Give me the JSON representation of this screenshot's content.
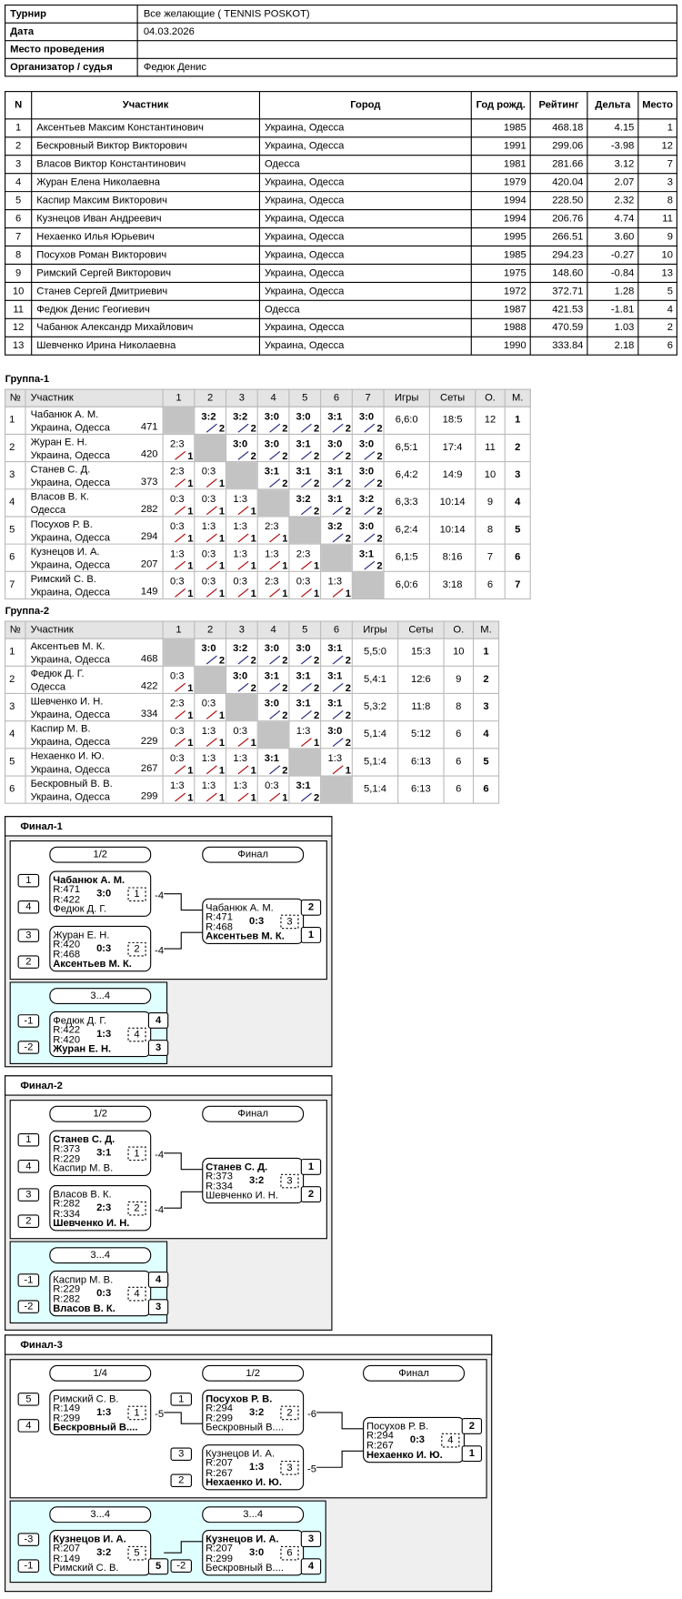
{
  "info": {
    "rows": [
      {
        "label": "Турнир",
        "value": "Все желающие ( TENNIS POSKOT)"
      },
      {
        "label": "Дата",
        "value": "04.03.2026"
      },
      {
        "label": "Место проведения"
      },
      {
        "label": "Организатор / судья",
        "value": "Федюк Денис"
      }
    ]
  },
  "participants": {
    "headers": [
      "N",
      "Участник",
      "Город",
      "Год рожд.",
      "Рейтинг",
      "Дельта",
      "Место"
    ],
    "rows": [
      [
        "1",
        "Аксентьев Максим Константинович",
        "Украина, Одесса",
        "1985",
        "468.18",
        "4.15",
        "1"
      ],
      [
        "2",
        "Бескровный Виктор Викторович",
        "Украина, Одесса",
        "1991",
        "299.06",
        "-3.98",
        "12"
      ],
      [
        "3",
        "Власов Виктор Константинович",
        "Одесса",
        "1981",
        "281.66",
        "3.12",
        "7"
      ],
      [
        "4",
        "Журан Елена Николаевна",
        "Украина, Одесса",
        "1979",
        "420.04",
        "2.07",
        "3"
      ],
      [
        "5",
        "Каспир Максим Викторович",
        "Украина, Одесса",
        "1994",
        "228.50",
        "2.32",
        "8"
      ],
      [
        "6",
        "Кузнецов Иван Андреевич",
        "Украина, Одесса",
        "1994",
        "206.76",
        "4.74",
        "11"
      ],
      [
        "7",
        "Нехаенко Илья Юрьевич",
        "Украина, Одесса",
        "1995",
        "266.51",
        "3.60",
        "9"
      ],
      [
        "8",
        "Посухов Роман Викторович",
        "Украина, Одесса",
        "1985",
        "294.23",
        "-0.27",
        "10"
      ],
      [
        "9",
        "Римский Сергей Викторович",
        "Украина, Одесса",
        "1975",
        "148.60",
        "-0.84",
        "13"
      ],
      [
        "10",
        "Станев Сергей Дмитриевич",
        "Украина, Одесса",
        "1972",
        "372.71",
        "1.28",
        "5"
      ],
      [
        "11",
        "Федюк Денис Геогиевич",
        "Одесса",
        "1987",
        "421.53",
        "-1.81",
        "4"
      ],
      [
        "12",
        "Чабанюк Александр Михайлович",
        "Украина, Одесса",
        "1988",
        "470.59",
        "1.03",
        "2"
      ],
      [
        "13",
        "Шевченко Ирина Николаевна",
        "Украина, Одесса",
        "1990",
        "333.84",
        "2.18",
        "6"
      ]
    ]
  },
  "groups": [
    {
      "title": "Группа-1",
      "headers": [
        "№",
        "Участник",
        "1",
        "2",
        "3",
        "4",
        "5",
        "6",
        "7",
        "Игры",
        "Сеты",
        "О.",
        "М."
      ],
      "rows": [
        {
          "n": "1",
          "name": "Чабанюк А. М.",
          "city": "Украина, Одесса",
          "rating": "471",
          "results": [
            null,
            [
              "3:2",
              "2"
            ],
            [
              "3:2",
              "2"
            ],
            [
              "3:0",
              "2"
            ],
            [
              "3:0",
              "2"
            ],
            [
              "3:1",
              "2"
            ],
            [
              "3:0",
              "2"
            ]
          ],
          "games": "6,6:0",
          "sets": "18:5",
          "points": "12",
          "place": "1"
        },
        {
          "n": "2",
          "name": "Журан Е. Н.",
          "city": "Украина, Одесса",
          "rating": "420",
          "results": [
            [
              "2:3",
              "1"
            ],
            null,
            [
              "3:0",
              "2"
            ],
            [
              "3:0",
              "2"
            ],
            [
              "3:1",
              "2"
            ],
            [
              "3:0",
              "2"
            ],
            [
              "3:0",
              "2"
            ]
          ],
          "games": "6,5:1",
          "sets": "17:4",
          "points": "11",
          "place": "2"
        },
        {
          "n": "3",
          "name": "Станев С. Д.",
          "city": "Украина, Одесса",
          "rating": "373",
          "results": [
            [
              "2:3",
              "1"
            ],
            [
              "0:3",
              "1"
            ],
            null,
            [
              "3:1",
              "2"
            ],
            [
              "3:1",
              "2"
            ],
            [
              "3:1",
              "2"
            ],
            [
              "3:0",
              "2"
            ]
          ],
          "games": "6,4:2",
          "sets": "14:9",
          "points": "10",
          "place": "3"
        },
        {
          "n": "4",
          "name": "Власов В. К.",
          "city": "Одесса",
          "rating": "282",
          "results": [
            [
              "0:3",
              "1"
            ],
            [
              "0:3",
              "1"
            ],
            [
              "1:3",
              "1"
            ],
            null,
            [
              "3:2",
              "2"
            ],
            [
              "3:1",
              "2"
            ],
            [
              "3:2",
              "2"
            ]
          ],
          "games": "6,3:3",
          "sets": "10:14",
          "points": "9",
          "place": "4"
        },
        {
          "n": "5",
          "name": "Посухов Р. В.",
          "city": "Украина, Одесса",
          "rating": "294",
          "results": [
            [
              "0:3",
              "1"
            ],
            [
              "1:3",
              "1"
            ],
            [
              "1:3",
              "1"
            ],
            [
              "2:3",
              "1"
            ],
            null,
            [
              "3:2",
              "2"
            ],
            [
              "3:0",
              "2"
            ]
          ],
          "games": "6,2:4",
          "sets": "10:14",
          "points": "8",
          "place": "5"
        },
        {
          "n": "6",
          "name": "Кузнецов И. А.",
          "city": "Украина, Одесса",
          "rating": "207",
          "results": [
            [
              "1:3",
              "1"
            ],
            [
              "0:3",
              "1"
            ],
            [
              "1:3",
              "1"
            ],
            [
              "1:3",
              "1"
            ],
            [
              "2:3",
              "1"
            ],
            null,
            [
              "3:1",
              "2"
            ]
          ],
          "games": "6,1:5",
          "sets": "8:16",
          "points": "7",
          "place": "6"
        },
        {
          "n": "7",
          "name": "Римский С. В.",
          "city": "Украина, Одесса",
          "rating": "149",
          "results": [
            [
              "0:3",
              "1"
            ],
            [
              "0:3",
              "1"
            ],
            [
              "0:3",
              "1"
            ],
            [
              "2:3",
              "1"
            ],
            [
              "0:3",
              "1"
            ],
            [
              "1:3",
              "1"
            ],
            null
          ],
          "games": "6,0:6",
          "sets": "3:18",
          "points": "6",
          "place": "7"
        }
      ]
    },
    {
      "title": "Группа-2",
      "headers": [
        "№",
        "Участник",
        "1",
        "2",
        "3",
        "4",
        "5",
        "6",
        "Игры",
        "Сеты",
        "О.",
        "М."
      ],
      "rows": [
        {
          "n": "1",
          "name": "Аксентьев М. К.",
          "city": "Украина, Одесса",
          "rating": "468",
          "results": [
            null,
            [
              "3:0",
              "2"
            ],
            [
              "3:2",
              "2"
            ],
            [
              "3:0",
              "2"
            ],
            [
              "3:0",
              "2"
            ],
            [
              "3:1",
              "2"
            ]
          ],
          "games": "5,5:0",
          "sets": "15:3",
          "points": "10",
          "place": "1"
        },
        {
          "n": "2",
          "name": "Федюк Д. Г.",
          "city": "Одесса",
          "rating": "422",
          "results": [
            [
              "0:3",
              "1"
            ],
            null,
            [
              "3:0",
              "2"
            ],
            [
              "3:1",
              "2"
            ],
            [
              "3:1",
              "2"
            ],
            [
              "3:1",
              "2"
            ]
          ],
          "games": "5,4:1",
          "sets": "12:6",
          "points": "9",
          "place": "2"
        },
        {
          "n": "3",
          "name": "Шевченко И. Н.",
          "city": "Украина, Одесса",
          "rating": "334",
          "results": [
            [
              "2:3",
              "1"
            ],
            [
              "0:3",
              "1"
            ],
            null,
            [
              "3:0",
              "2"
            ],
            [
              "3:1",
              "2"
            ],
            [
              "3:1",
              "2"
            ]
          ],
          "games": "5,3:2",
          "sets": "11:8",
          "points": "8",
          "place": "3"
        },
        {
          "n": "4",
          "name": "Каспир М. В.",
          "city": "Украина, Одесса",
          "rating": "229",
          "results": [
            [
              "0:3",
              "1"
            ],
            [
              "1:3",
              "1"
            ],
            [
              "0:3",
              "1"
            ],
            null,
            [
              "1:3",
              "1"
            ],
            [
              "3:0",
              "2"
            ]
          ],
          "games": "5,1:4",
          "sets": "5:12",
          "points": "6",
          "place": "4"
        },
        {
          "n": "5",
          "name": "Нехаенко И. Ю.",
          "city": "Украина, Одесса",
          "rating": "267",
          "results": [
            [
              "0:3",
              "1"
            ],
            [
              "1:3",
              "1"
            ],
            [
              "1:3",
              "1"
            ],
            [
              "3:1",
              "2"
            ],
            null,
            [
              "1:3",
              "1"
            ]
          ],
          "games": "5,1:4",
          "sets": "6:13",
          "points": "6",
          "place": "5"
        },
        {
          "n": "6",
          "name": "Бескровный В. В.",
          "city": "Украина, Одесса",
          "rating": "299",
          "results": [
            [
              "1:3",
              "1"
            ],
            [
              "1:3",
              "1"
            ],
            [
              "1:3",
              "1"
            ],
            [
              "0:3",
              "1"
            ],
            [
              "3:1",
              "2"
            ],
            null
          ],
          "games": "5,1:4",
          "sets": "6:13",
          "points": "6",
          "place": "6"
        }
      ]
    }
  ],
  "finals": [
    {
      "title": "Финал-1",
      "rounds": [
        "1/2",
        "Финал"
      ],
      "matches": [
        {
          "seeds": [
            "1",
            "4"
          ],
          "players": [
            {
              "name": "Чабанюк А. М.",
              "rating": "R:471",
              "bold": true
            },
            {
              "name": "Федюк Д. Г.",
              "rating": "R:422"
            }
          ],
          "score": "3:0",
          "num": "1",
          "out": "-4"
        },
        {
          "seeds": [
            "3",
            "2"
          ],
          "players": [
            {
              "name": "Журан Е. Н.",
              "rating": "R:420"
            },
            {
              "name": "Аксентьев М. К.",
              "rating": "R:468",
              "bold": true
            }
          ],
          "score": "0:3",
          "num": "2",
          "out": "-4"
        },
        {
          "players": [
            {
              "name": "Чабанюк А. М.",
              "rating": "R:471"
            },
            {
              "name": "Аксентьев М. К.",
              "rating": "R:468",
              "bold": true
            }
          ],
          "score": "0:3",
          "num": "3",
          "places": [
            "2",
            "1"
          ]
        }
      ],
      "consolation": {
        "rounds": [
          "3...4"
        ],
        "matches": [
          {
            "seeds": [
              "-1",
              "-2"
            ],
            "players": [
              {
                "name": "Федюк Д. Г.",
                "rating": "R:422"
              },
              {
                "name": "Журан Е. Н.",
                "rating": "R:420",
                "bold": true
              }
            ],
            "score": "1:3",
            "num": "4",
            "places": [
              "4",
              "3"
            ]
          }
        ]
      }
    },
    {
      "title": "Финал-2",
      "rounds": [
        "1/2",
        "Финал"
      ],
      "matches": [
        {
          "seeds": [
            "1",
            "4"
          ],
          "players": [
            {
              "name": "Станев С. Д.",
              "rating": "R:373",
              "bold": true
            },
            {
              "name": "Каспир М. В.",
              "rating": "R:229"
            }
          ],
          "score": "3:1",
          "num": "1",
          "out": "-4"
        },
        {
          "seeds": [
            "3",
            "2"
          ],
          "players": [
            {
              "name": "Власов В. К.",
              "rating": "R:282"
            },
            {
              "name": "Шевченко И. Н.",
              "rating": "R:334",
              "bold": true
            }
          ],
          "score": "2:3",
          "num": "2",
          "out": "-4"
        },
        {
          "players": [
            {
              "name": "Станев С. Д.",
              "rating": "R:373",
              "bold": true
            },
            {
              "name": "Шевченко И. Н.",
              "rating": "R:334"
            }
          ],
          "score": "3:2",
          "num": "3",
          "places": [
            "1",
            "2"
          ]
        }
      ],
      "consolation": {
        "rounds": [
          "3...4"
        ],
        "matches": [
          {
            "seeds": [
              "-1",
              "-2"
            ],
            "players": [
              {
                "name": "Каспир М. В.",
                "rating": "R:229"
              },
              {
                "name": "Власов В. К.",
                "rating": "R:282",
                "bold": true
              }
            ],
            "score": "0:3",
            "num": "4",
            "places": [
              "4",
              "3"
            ]
          }
        ]
      }
    },
    {
      "title": "Финал-3",
      "rounds": [
        "1/4",
        "1/2",
        "Финал"
      ],
      "matches": [
        {
          "seeds": [
            "5",
            "4"
          ],
          "players": [
            {
              "name": "Римский С. В.",
              "rating": "R:149"
            },
            {
              "name": "Бескровный В....",
              "rating": "R:299",
              "bold": true
            }
          ],
          "score": "1:3",
          "num": "1",
          "out": "-5"
        },
        {
          "seeds": [
            "1",
            null
          ],
          "players": [
            {
              "name": "Посухов Р. В.",
              "rating": "R:294",
              "bold": true
            },
            {
              "name": "Бескровный В....",
              "rating": "R:299"
            }
          ],
          "score": "3:2",
          "num": "2",
          "out": "-6"
        },
        {
          "seeds": [
            "3",
            "2"
          ],
          "players": [
            {
              "name": "Кузнецов И. А.",
              "rating": "R:207"
            },
            {
              "name": "Нехаенко И. Ю.",
              "rating": "R:267",
              "bold": true
            }
          ],
          "score": "1:3",
          "num": "3",
          "out": "-5"
        },
        {
          "players": [
            {
              "name": "Посухов Р. В.",
              "rating": "R:294"
            },
            {
              "name": "Нехаенко И. Ю.",
              "rating": "R:267",
              "bold": true
            }
          ],
          "score": "0:3",
          "num": "4",
          "places": [
            "2",
            "1"
          ]
        }
      ],
      "consolation": {
        "rounds": [
          "3...4",
          "3...4"
        ],
        "matches": [
          {
            "seeds": [
              "-3",
              "-1"
            ],
            "players": [
              {
                "name": "Кузнецов И. А.",
                "rating": "R:207",
                "bold": true
              },
              {
                "name": "Римский С. В.",
                "rating": "R:149"
              }
            ],
            "score": "3:2",
            "num": "5",
            "places": [
              null,
              "5"
            ]
          },
          {
            "seeds": [
              null,
              "-2"
            ],
            "players": [
              {
                "name": "Кузнецов И. А.",
                "rating": "R:207",
                "bold": true
              },
              {
                "name": "Бескровный В....",
                "rating": "R:299"
              }
            ],
            "score": "3:0",
            "num": "6",
            "places": [
              "3",
              "4"
            ]
          }
        ]
      }
    }
  ]
}
